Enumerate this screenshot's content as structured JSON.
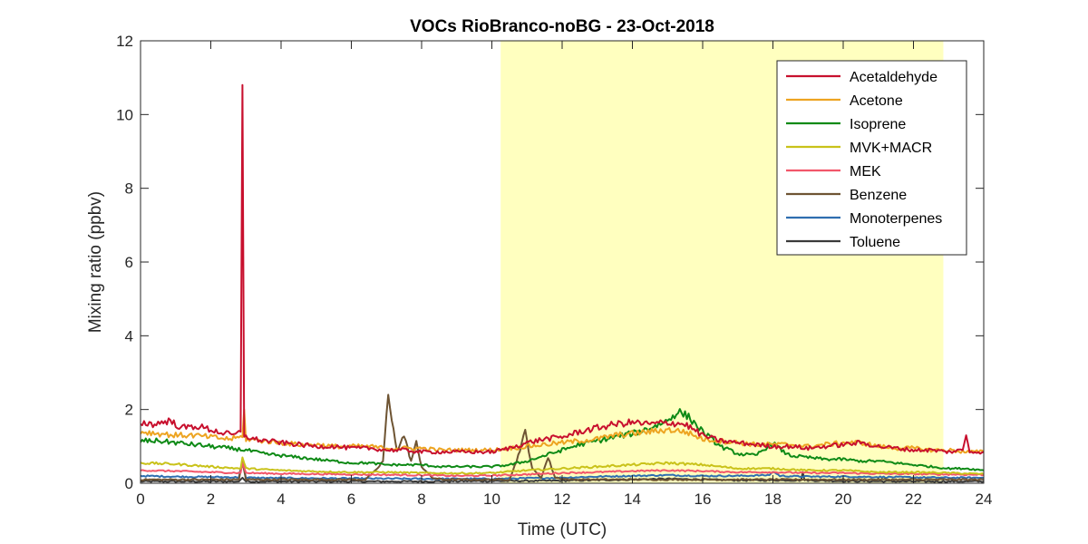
{
  "chart_data": {
    "type": "line",
    "title": "VOCs RioBranco-noBG - 23-Oct-2018",
    "xlabel": "Time (UTC)",
    "ylabel": "Mixing ratio (ppbv)",
    "xlim": [
      0,
      24
    ],
    "ylim": [
      0,
      12
    ],
    "xticks": [
      0,
      2,
      4,
      6,
      8,
      10,
      12,
      14,
      16,
      18,
      20,
      22,
      24
    ],
    "yticks": [
      0,
      2,
      4,
      6,
      8,
      10,
      12
    ],
    "grid": false,
    "legend_position": "top-right",
    "highlight_band": {
      "x_start": 10.25,
      "x_end": 22.85,
      "color": "#ffffbf"
    },
    "series": [
      {
        "name": "Acetaldehyde",
        "color": "#c8102e",
        "points": [
          [
            0,
            1.65
          ],
          [
            0.4,
            1.6
          ],
          [
            0.8,
            1.7
          ],
          [
            1.2,
            1.5
          ],
          [
            1.6,
            1.55
          ],
          [
            2.0,
            1.45
          ],
          [
            2.4,
            1.35
          ],
          [
            2.7,
            1.3
          ],
          [
            2.85,
            1.4
          ],
          [
            2.9,
            10.8
          ],
          [
            2.95,
            1.3
          ],
          [
            3.2,
            1.2
          ],
          [
            3.6,
            1.15
          ],
          [
            4.0,
            1.1
          ],
          [
            4.5,
            1.05
          ],
          [
            5.0,
            1.0
          ],
          [
            5.5,
            1.0
          ],
          [
            6.0,
            0.95
          ],
          [
            6.5,
            0.95
          ],
          [
            7.0,
            0.9
          ],
          [
            7.5,
            0.9
          ],
          [
            8.0,
            0.85
          ],
          [
            8.5,
            0.85
          ],
          [
            9.0,
            0.85
          ],
          [
            9.5,
            0.85
          ],
          [
            10.0,
            0.85
          ],
          [
            10.5,
            0.95
          ],
          [
            11.0,
            1.1
          ],
          [
            11.5,
            1.2
          ],
          [
            12.0,
            1.25
          ],
          [
            12.5,
            1.4
          ],
          [
            13.0,
            1.5
          ],
          [
            13.5,
            1.6
          ],
          [
            14.0,
            1.65
          ],
          [
            14.5,
            1.6
          ],
          [
            15.0,
            1.65
          ],
          [
            15.5,
            1.6
          ],
          [
            16.0,
            1.3
          ],
          [
            16.5,
            1.15
          ],
          [
            17.0,
            1.1
          ],
          [
            17.5,
            1.05
          ],
          [
            18.0,
            1.0
          ],
          [
            18.5,
            1.0
          ],
          [
            19.0,
            0.95
          ],
          [
            19.5,
            1.0
          ],
          [
            20.0,
            1.05
          ],
          [
            20.5,
            1.1
          ],
          [
            21.0,
            1.0
          ],
          [
            21.5,
            0.95
          ],
          [
            22.0,
            0.9
          ],
          [
            22.5,
            0.9
          ],
          [
            23.0,
            0.85
          ],
          [
            23.4,
            0.9
          ],
          [
            23.5,
            1.3
          ],
          [
            23.6,
            0.85
          ],
          [
            24.0,
            0.85
          ]
        ]
      },
      {
        "name": "Acetone",
        "color": "#eda421",
        "points": [
          [
            0,
            1.4
          ],
          [
            0.5,
            1.35
          ],
          [
            1.0,
            1.3
          ],
          [
            1.5,
            1.3
          ],
          [
            2.0,
            1.25
          ],
          [
            2.5,
            1.2
          ],
          [
            2.9,
            1.25
          ],
          [
            2.95,
            2.0
          ],
          [
            3.0,
            1.2
          ],
          [
            3.5,
            1.15
          ],
          [
            4.0,
            1.1
          ],
          [
            4.5,
            1.05
          ],
          [
            5.0,
            1.05
          ],
          [
            5.5,
            1.0
          ],
          [
            6.0,
            1.0
          ],
          [
            6.5,
            1.0
          ],
          [
            7.0,
            0.95
          ],
          [
            7.5,
            0.95
          ],
          [
            8.0,
            0.95
          ],
          [
            8.5,
            0.9
          ],
          [
            9.0,
            0.9
          ],
          [
            9.5,
            0.9
          ],
          [
            10.0,
            0.9
          ],
          [
            10.5,
            0.95
          ],
          [
            11.0,
            1.0
          ],
          [
            11.5,
            1.05
          ],
          [
            12.0,
            1.1
          ],
          [
            12.5,
            1.15
          ],
          [
            13.0,
            1.2
          ],
          [
            13.5,
            1.3
          ],
          [
            14.0,
            1.35
          ],
          [
            14.5,
            1.4
          ],
          [
            15.0,
            1.45
          ],
          [
            15.5,
            1.4
          ],
          [
            16.0,
            1.2
          ],
          [
            16.5,
            1.15
          ],
          [
            17.0,
            1.1
          ],
          [
            17.5,
            1.05
          ],
          [
            18.0,
            1.05
          ],
          [
            18.5,
            1.05
          ],
          [
            19.0,
            1.0
          ],
          [
            19.5,
            1.05
          ],
          [
            20.0,
            1.1
          ],
          [
            20.5,
            1.1
          ],
          [
            21.0,
            1.0
          ],
          [
            21.5,
            0.95
          ],
          [
            22.0,
            0.95
          ],
          [
            22.5,
            0.9
          ],
          [
            23.0,
            0.9
          ],
          [
            23.5,
            0.85
          ],
          [
            24.0,
            0.85
          ]
        ]
      },
      {
        "name": "Isoprene",
        "color": "#0e8a16",
        "points": [
          [
            0,
            1.15
          ],
          [
            0.5,
            1.15
          ],
          [
            1.0,
            1.1
          ],
          [
            1.5,
            1.05
          ],
          [
            2.0,
            1.0
          ],
          [
            2.5,
            0.95
          ],
          [
            3.0,
            0.9
          ],
          [
            3.5,
            0.8
          ],
          [
            4.0,
            0.75
          ],
          [
            4.5,
            0.7
          ],
          [
            5.0,
            0.65
          ],
          [
            5.5,
            0.6
          ],
          [
            6.0,
            0.55
          ],
          [
            6.5,
            0.55
          ],
          [
            7.0,
            0.5
          ],
          [
            7.5,
            0.5
          ],
          [
            8.0,
            0.5
          ],
          [
            8.5,
            0.45
          ],
          [
            9.0,
            0.45
          ],
          [
            9.5,
            0.45
          ],
          [
            10.0,
            0.45
          ],
          [
            10.5,
            0.5
          ],
          [
            11.0,
            0.6
          ],
          [
            11.5,
            0.75
          ],
          [
            12.0,
            0.9
          ],
          [
            12.5,
            1.05
          ],
          [
            13.0,
            1.15
          ],
          [
            13.5,
            1.25
          ],
          [
            14.0,
            1.35
          ],
          [
            14.5,
            1.5
          ],
          [
            15.0,
            1.7
          ],
          [
            15.3,
            1.95
          ],
          [
            15.6,
            1.8
          ],
          [
            16.0,
            1.4
          ],
          [
            16.5,
            1.0
          ],
          [
            17.0,
            0.8
          ],
          [
            17.5,
            0.75
          ],
          [
            18.0,
            1.1
          ],
          [
            18.3,
            0.85
          ],
          [
            18.5,
            0.75
          ],
          [
            19.0,
            0.7
          ],
          [
            19.5,
            0.65
          ],
          [
            20.0,
            0.65
          ],
          [
            20.5,
            0.6
          ],
          [
            21.0,
            0.6
          ],
          [
            21.5,
            0.55
          ],
          [
            22.0,
            0.5
          ],
          [
            22.5,
            0.45
          ],
          [
            23.0,
            0.4
          ],
          [
            23.5,
            0.4
          ],
          [
            24.0,
            0.35
          ]
        ]
      },
      {
        "name": "MVK+MACR",
        "color": "#c9c21a",
        "points": [
          [
            0,
            0.55
          ],
          [
            1.0,
            0.52
          ],
          [
            2.0,
            0.45
          ],
          [
            2.85,
            0.4
          ],
          [
            2.9,
            0.7
          ],
          [
            3.0,
            0.4
          ],
          [
            4.0,
            0.35
          ],
          [
            5.0,
            0.32
          ],
          [
            6.0,
            0.3
          ],
          [
            7.0,
            0.3
          ],
          [
            8.0,
            0.28
          ],
          [
            9.0,
            0.27
          ],
          [
            10.0,
            0.28
          ],
          [
            11.0,
            0.35
          ],
          [
            12.0,
            0.4
          ],
          [
            13.0,
            0.45
          ],
          [
            14.0,
            0.5
          ],
          [
            15.0,
            0.55
          ],
          [
            16.0,
            0.5
          ],
          [
            17.0,
            0.4
          ],
          [
            18.0,
            0.4
          ],
          [
            19.0,
            0.35
          ],
          [
            20.0,
            0.35
          ],
          [
            21.0,
            0.3
          ],
          [
            22.0,
            0.3
          ],
          [
            23.0,
            0.28
          ],
          [
            24.0,
            0.25
          ]
        ]
      },
      {
        "name": "MEK",
        "color": "#f2566a",
        "points": [
          [
            0,
            0.35
          ],
          [
            1.0,
            0.33
          ],
          [
            2.0,
            0.3
          ],
          [
            2.85,
            0.28
          ],
          [
            2.9,
            0.55
          ],
          [
            3.0,
            0.28
          ],
          [
            4.0,
            0.26
          ],
          [
            5.0,
            0.25
          ],
          [
            6.0,
            0.24
          ],
          [
            7.0,
            0.23
          ],
          [
            8.0,
            0.22
          ],
          [
            9.0,
            0.2
          ],
          [
            10.0,
            0.21
          ],
          [
            11.0,
            0.24
          ],
          [
            12.0,
            0.28
          ],
          [
            13.0,
            0.3
          ],
          [
            14.0,
            0.33
          ],
          [
            15.0,
            0.35
          ],
          [
            16.0,
            0.33
          ],
          [
            17.0,
            0.3
          ],
          [
            18.0,
            0.3
          ],
          [
            19.0,
            0.28
          ],
          [
            20.0,
            0.28
          ],
          [
            21.0,
            0.26
          ],
          [
            22.0,
            0.25
          ],
          [
            23.0,
            0.24
          ],
          [
            24.0,
            0.23
          ]
        ]
      },
      {
        "name": "Benzene",
        "color": "#6e5433",
        "points": [
          [
            0,
            0.1
          ],
          [
            2.8,
            0.1
          ],
          [
            2.9,
            0.6
          ],
          [
            3.0,
            0.1
          ],
          [
            6.4,
            0.1
          ],
          [
            6.7,
            0.35
          ],
          [
            6.9,
            0.6
          ],
          [
            7.05,
            2.4
          ],
          [
            7.15,
            1.7
          ],
          [
            7.3,
            0.9
          ],
          [
            7.5,
            1.3
          ],
          [
            7.7,
            0.6
          ],
          [
            7.85,
            1.1
          ],
          [
            8.0,
            0.45
          ],
          [
            8.3,
            0.15
          ],
          [
            8.6,
            0.1
          ],
          [
            10.5,
            0.1
          ],
          [
            10.7,
            0.6
          ],
          [
            10.95,
            1.4
          ],
          [
            11.15,
            0.4
          ],
          [
            11.4,
            0.15
          ],
          [
            11.6,
            0.7
          ],
          [
            11.8,
            0.15
          ],
          [
            12.2,
            0.1
          ],
          [
            24.0,
            0.1
          ]
        ]
      },
      {
        "name": "Monoterpenes",
        "color": "#2f6eb0",
        "points": [
          [
            0,
            0.2
          ],
          [
            1.0,
            0.18
          ],
          [
            2.0,
            0.17
          ],
          [
            2.8,
            0.16
          ],
          [
            2.9,
            0.6
          ],
          [
            3.0,
            0.15
          ],
          [
            4.0,
            0.14
          ],
          [
            6.0,
            0.13
          ],
          [
            8.0,
            0.12
          ],
          [
            10.0,
            0.12
          ],
          [
            12.0,
            0.15
          ],
          [
            13.0,
            0.18
          ],
          [
            14.0,
            0.2
          ],
          [
            15.0,
            0.22
          ],
          [
            16.0,
            0.2
          ],
          [
            17.0,
            0.2
          ],
          [
            17.9,
            0.22
          ],
          [
            18.0,
            0.32
          ],
          [
            18.2,
            0.2
          ],
          [
            19.0,
            0.18
          ],
          [
            20.0,
            0.18
          ],
          [
            21.0,
            0.17
          ],
          [
            22.0,
            0.16
          ],
          [
            23.0,
            0.15
          ],
          [
            24.0,
            0.15
          ]
        ]
      },
      {
        "name": "Toluene",
        "color": "#3a3a3a",
        "points": [
          [
            0,
            0.05
          ],
          [
            2.8,
            0.05
          ],
          [
            2.9,
            0.15
          ],
          [
            3.0,
            0.05
          ],
          [
            8.0,
            0.05
          ],
          [
            12.0,
            0.07
          ],
          [
            14.0,
            0.1
          ],
          [
            15.0,
            0.12
          ],
          [
            16.0,
            0.1
          ],
          [
            17.0,
            0.08
          ],
          [
            18.0,
            0.08
          ],
          [
            18.8,
            0.08
          ],
          [
            18.85,
            0.3
          ],
          [
            18.9,
            0.08
          ],
          [
            20.0,
            0.06
          ],
          [
            22.0,
            0.05
          ],
          [
            24.0,
            0.05
          ]
        ]
      }
    ]
  }
}
